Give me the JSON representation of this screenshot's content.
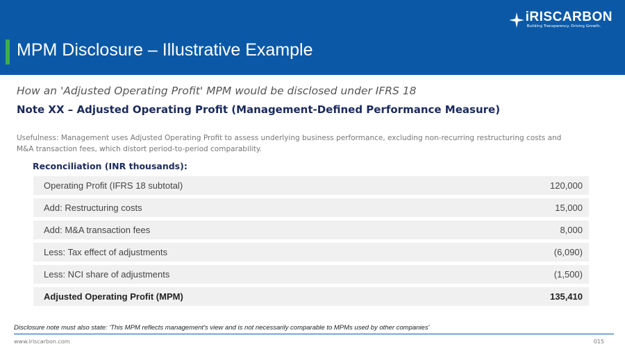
{
  "header": {
    "title": "MPM Disclosure – Illustrative Example",
    "logo": "iRISCARBON",
    "tagline": "Building Transparency. Driving Growth."
  },
  "subtitle": "How an 'Adjusted Operating Profit' MPM would be disclosed under IFRS 18",
  "note_heading": "Note XX – Adjusted Operating Profit (Management-Defined Performance Measure)",
  "usefulness": "Usefulness: Management uses Adjusted Operating Profit to assess underlying business performance, excluding non-recurring restructuring costs and M&A transaction fees, which distort period-to-period comparability.",
  "table": {
    "title": "Reconciliation (INR thousands):",
    "rows": [
      [
        "Operating Profit (IFRS 18 subtotal)",
        "120,000"
      ],
      [
        "Add: Restructuring costs",
        "15,000"
      ],
      [
        "Add: M&A transaction fees",
        "8,000"
      ],
      [
        "Less: Tax effect of adjustments",
        "(6,090)"
      ],
      [
        "Less: NCI share of adjustments",
        "(1,500)"
      ],
      [
        "Adjusted Operating Profit (MPM)",
        "135,410"
      ]
    ]
  },
  "disclosure": "Disclosure note must also state: 'This MPM reflects management's view and is not necessarily comparable to MPMs used by other companies'",
  "footer": {
    "url": "www.iriscarbon.com",
    "page": "015"
  }
}
